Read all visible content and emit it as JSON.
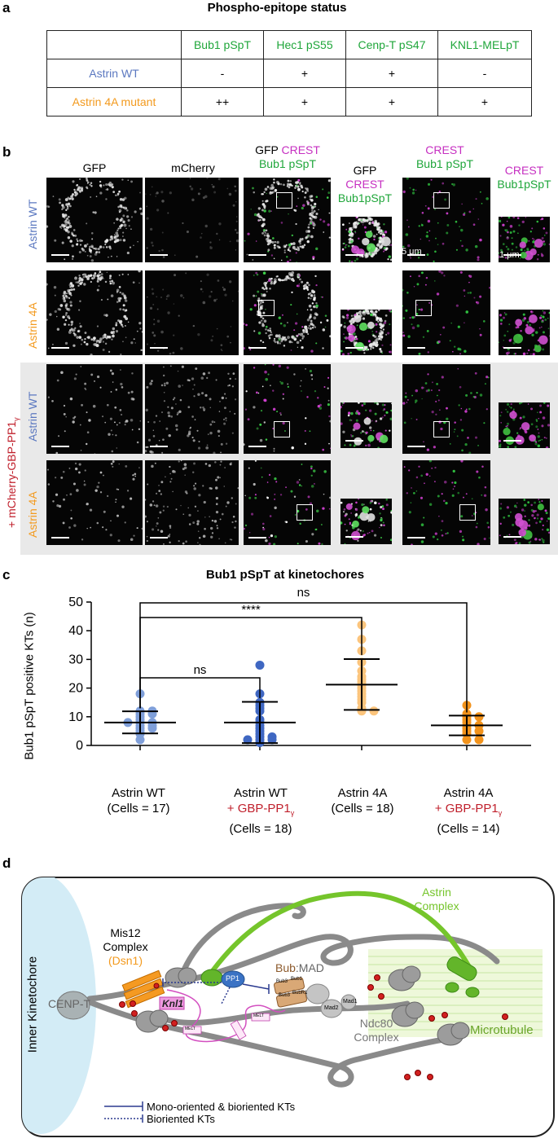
{
  "panel_a": {
    "letter": "a",
    "title": "Phospho-epitope status",
    "columns": [
      "Bub1 pSpT",
      "Hec1 pS55",
      "Cenp-T pS47",
      "KNL1-MELpT"
    ],
    "rows": [
      {
        "label": "Astrin WT",
        "values": [
          "-",
          "+",
          "+",
          "-"
        ]
      },
      {
        "label": "Astrin 4A mutant",
        "values": [
          "++",
          "+",
          "+",
          "+"
        ]
      }
    ]
  },
  "panel_b": {
    "letter": "b",
    "col_headers": {
      "gfp": "GFP",
      "mcherry": "mCherry",
      "merge_gfp": "GFP",
      "merge_crest": "CREST",
      "merge_bub1": "Bub1 pSpT",
      "zoom_gfp": "GFP",
      "zoom_crest": "CREST",
      "zoom_bub1": "Bub1pSpT",
      "crest2": "CREST",
      "bub1_2": "Bub1 pSpT",
      "crest3": "CREST",
      "bub1_3": "Bub1pSpT"
    },
    "row_labels": [
      "Astrin WT",
      "Astrin 4A",
      "Astrin WT",
      "Astrin 4A"
    ],
    "side_label": "+ mCherry-GBP-PP1",
    "side_label_sub": "γ",
    "scale_5um": "5 μm",
    "scale_1um": "1 μm"
  },
  "panel_c": {
    "letter": "c",
    "title": "Bub1 pSpT at kinetochores",
    "ylabel": "Bub1 pSpT positive KTs (n)",
    "ticks": [
      "0",
      "10",
      "20",
      "30",
      "40",
      "50"
    ],
    "sig_ns_top": "ns",
    "sig_stars": "****",
    "sig_ns_left": "ns",
    "groups": [
      {
        "name": "Astrin WT",
        "cells": "(Cells = 17)"
      },
      {
        "name": "Astrin WT",
        "treat": "+ GBP-PP1",
        "sub": "γ",
        "cells": "(Cells = 18)"
      },
      {
        "name": "Astrin 4A",
        "cells": "(Cells = 18)"
      },
      {
        "name": "Astrin 4A",
        "treat": "+ GBP-PP1",
        "sub": "γ",
        "cells": "(Cells = 14)"
      }
    ]
  },
  "chart_data": {
    "type": "scatter",
    "title": "Bub1 pSpT at kinetochores",
    "ylabel": "Bub1 pSpT positive KTs (n)",
    "ylim": [
      0,
      50
    ],
    "categories": [
      "Astrin WT",
      "Astrin WT + GBP-PP1γ",
      "Astrin 4A",
      "Astrin 4A + GBP-PP1γ"
    ],
    "series": [
      {
        "name": "Astrin WT",
        "color": "#7f9fd9",
        "mean": 8.0,
        "sd_low": 4.2,
        "sd_high": 11.9,
        "values": [
          18,
          12,
          12,
          11,
          11,
          10,
          9,
          8,
          8,
          8,
          7,
          7,
          6,
          6,
          5,
          4,
          2
        ]
      },
      {
        "name": "Astrin WT + GBP-PP1γ",
        "color": "#3f67c2",
        "mean": 8.0,
        "sd_low": 0.8,
        "sd_high": 15.2,
        "values": [
          28,
          18,
          15,
          14,
          13,
          12,
          9,
          8,
          7,
          6,
          5,
          4,
          3,
          3,
          2,
          2,
          2,
          1
        ]
      },
      {
        "name": "Astrin 4A",
        "color": "#fbc47c",
        "mean": 21.2,
        "sd_low": 12.4,
        "sd_high": 30.1,
        "values": [
          42,
          37,
          33,
          29,
          26,
          24,
          23,
          22,
          21,
          20,
          19,
          18,
          17,
          16,
          15,
          13,
          12,
          12
        ]
      },
      {
        "name": "Astrin 4A + GBP-PP1γ",
        "color": "#f2931c",
        "mean": 7.0,
        "sd_low": 3.5,
        "sd_high": 10.4,
        "values": [
          14,
          11,
          10,
          10,
          9,
          8,
          7,
          7,
          6,
          5,
          5,
          4,
          2,
          2
        ]
      }
    ],
    "annotations": [
      "ns",
      "****",
      "ns"
    ]
  },
  "panel_d": {
    "letter": "d",
    "inner_kt": "Inner Kinetochore",
    "cenpt": "CENP-T",
    "mis12_a": "Mis12",
    "mis12_b": "Complex",
    "dsn1": "(Dsn1)",
    "knl1": "Knl1",
    "pp1": "PP1",
    "astrin_a": "Astrin",
    "astrin_b": "Complex",
    "bub": "Bub",
    "mad": ":MAD",
    "bub3a": "Bub3",
    "bub1": "Bub1",
    "bub3b": "Bub3",
    "bubr1": "BubR1",
    "mad2": "Mad2",
    "mad1": "Mad1",
    "melt": "MELT",
    "ndc80_a": "Ndc80",
    "ndc80_b": "Complex",
    "microtubule": "Microtubule",
    "legend_solid": "Mono-oriented & bioriented KTs",
    "legend_dotted": "Bioriented KTs"
  }
}
